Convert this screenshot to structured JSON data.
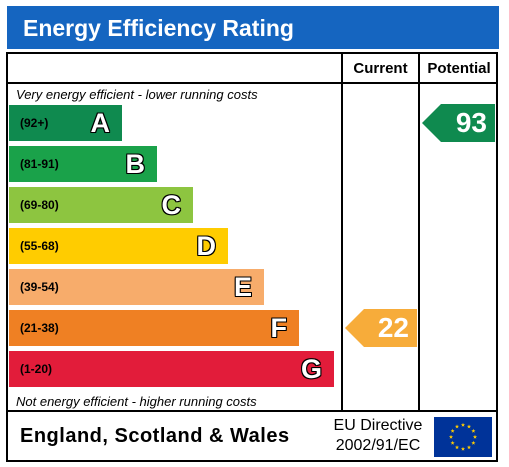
{
  "header": {
    "title": "Energy Efficiency Rating"
  },
  "columns": {
    "current": "Current",
    "potential": "Potential"
  },
  "notes": {
    "top": "Very energy efficient - lower running costs",
    "bottom": "Not energy efficient - higher running costs"
  },
  "chart_data": {
    "type": "bar",
    "title": "Energy Efficiency Rating",
    "categories": [
      "A",
      "B",
      "C",
      "D",
      "E",
      "F",
      "G"
    ],
    "bands": [
      {
        "letter": "A",
        "range": "(92+)",
        "color": "#0f8a4f"
      },
      {
        "letter": "B",
        "range": "(81-91)",
        "color": "#1aa24a"
      },
      {
        "letter": "C",
        "range": "(69-80)",
        "color": "#8dc540"
      },
      {
        "letter": "D",
        "range": "(55-68)",
        "color": "#ffcc00"
      },
      {
        "letter": "E",
        "range": "(39-54)",
        "color": "#f7ac6b"
      },
      {
        "letter": "F",
        "range": "(21-38)",
        "color": "#ef8023"
      },
      {
        "letter": "G",
        "range": "(1-20)",
        "color": "#e21c3a"
      }
    ],
    "current": {
      "value": "22",
      "band": "F",
      "color": "#f7ac3a"
    },
    "potential": {
      "value": "93",
      "band": "A",
      "color": "#0f8a4f"
    }
  },
  "footer": {
    "region": "England, Scotland & Wales",
    "directive_line1": "EU Directive",
    "directive_line2": "2002/91/EC",
    "flag_colors": {
      "background": "#003399",
      "stars": "#ffcc00"
    }
  }
}
